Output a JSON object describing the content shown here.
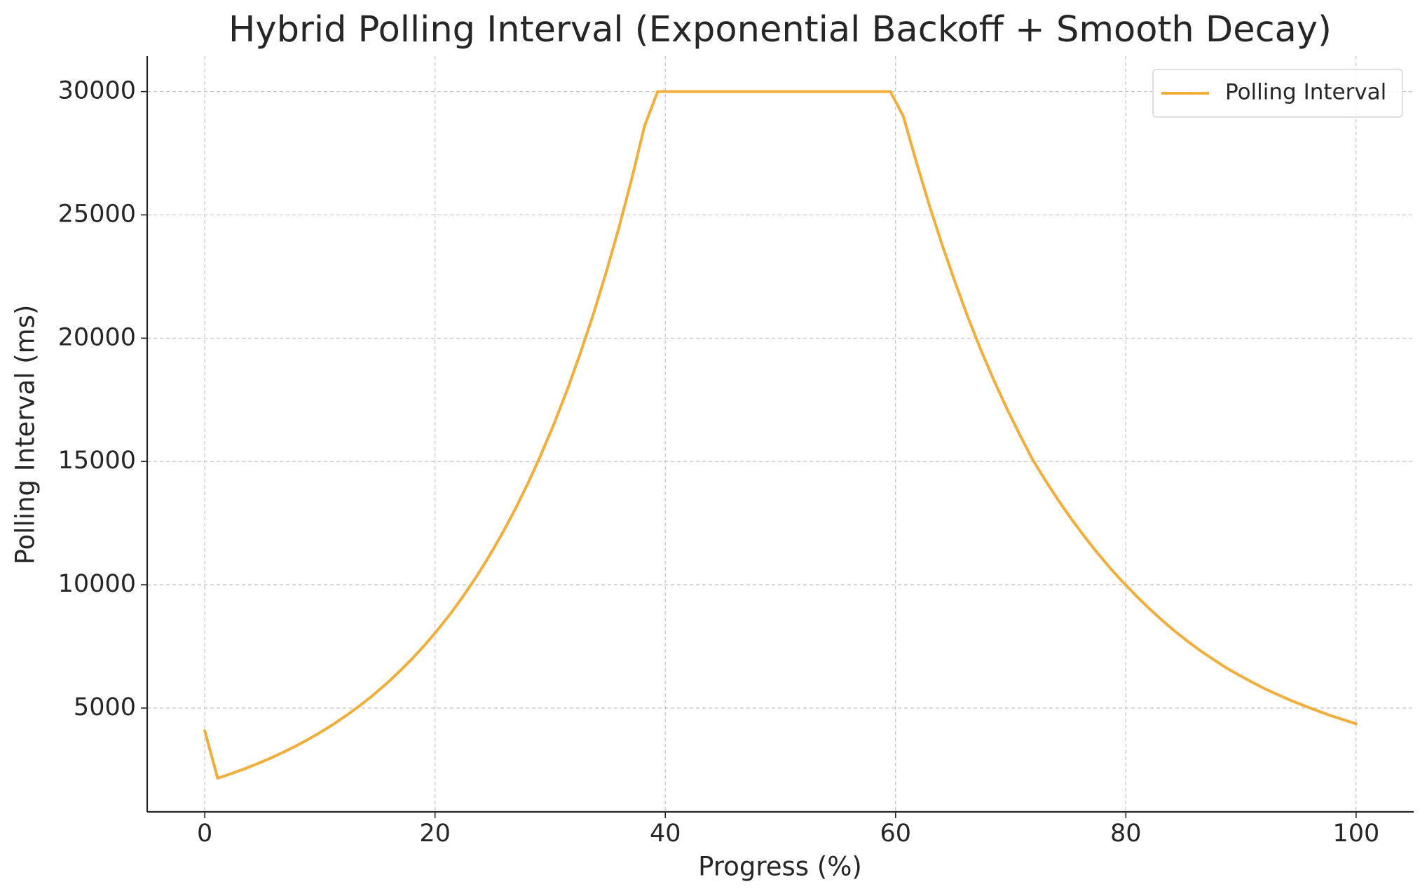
{
  "chart_data": {
    "type": "line",
    "title": "Hybrid Polling Interval (Exponential Backoff + Smooth Decay)",
    "x_label": "Progress (%)",
    "y_label": "Polling Interval (ms)",
    "x": [
      0,
      1.12,
      2.25,
      3.37,
      4.49,
      5.62,
      6.74,
      7.87,
      8.99,
      10.11,
      11.24,
      12.36,
      13.48,
      14.61,
      15.73,
      16.85,
      17.98,
      19.1,
      20.22,
      21.35,
      22.47,
      23.6,
      24.72,
      25.84,
      26.97,
      28.09,
      29.21,
      30.34,
      31.46,
      32.58,
      33.71,
      34.83,
      35.96,
      37.08,
      38.2,
      39.33,
      40.45,
      41.57,
      42.7,
      43.82,
      44.94,
      46.07,
      47.19,
      48.31,
      49.44,
      50.56,
      51.69,
      52.81,
      53.93,
      55.06,
      56.18,
      57.3,
      58.43,
      59.55,
      60.67,
      61.8,
      62.92,
      64.04,
      65.17,
      66.29,
      67.42,
      68.54,
      69.66,
      70.79,
      71.91,
      73.03,
      74.16,
      75.28,
      76.4,
      77.53,
      78.65,
      79.78,
      80.9,
      82.02,
      83.15,
      84.27,
      85.39,
      86.52,
      87.64,
      88.76,
      89.89,
      91.01,
      92.13,
      93.26,
      94.38,
      95.51,
      96.63,
      97.75,
      98.88,
      100
    ],
    "series": [
      {
        "name": "Polling Interval",
        "color": "#f2ae3d",
        "values": [
          4080,
          2156,
          2332,
          2522,
          2727,
          2949,
          3190,
          3450,
          3731,
          4035,
          4364,
          4720,
          5104,
          5520,
          5970,
          6457,
          6983,
          7552,
          8167,
          8833,
          9553,
          10331,
          11173,
          12084,
          13069,
          14134,
          15286,
          16532,
          17879,
          19336,
          20912,
          22616,
          24459,
          26453,
          28609,
          30000,
          30000,
          30000,
          30000,
          30000,
          30000,
          30000,
          30000,
          30000,
          30000,
          30000,
          30000,
          30000,
          30000,
          30000,
          30000,
          30000,
          30000,
          30000,
          29000,
          27150,
          25410,
          23790,
          22270,
          20840,
          19510,
          18290,
          17150,
          16080,
          15070,
          14220,
          13410,
          12660,
          11960,
          11290,
          10670,
          10090,
          9550,
          9040,
          8560,
          8110,
          7700,
          7310,
          6960,
          6620,
          6320,
          6040,
          5770,
          5530,
          5300,
          5090,
          4890,
          4700,
          4530,
          4360
        ]
      }
    ],
    "xlim": [
      -5,
      105
    ],
    "ylim": [
      790,
      31440
    ],
    "xticks": [
      0,
      20,
      40,
      60,
      80,
      100
    ],
    "yticks": [
      5000,
      10000,
      15000,
      20000,
      25000,
      30000
    ],
    "grid": true,
    "legend": "upper right"
  }
}
